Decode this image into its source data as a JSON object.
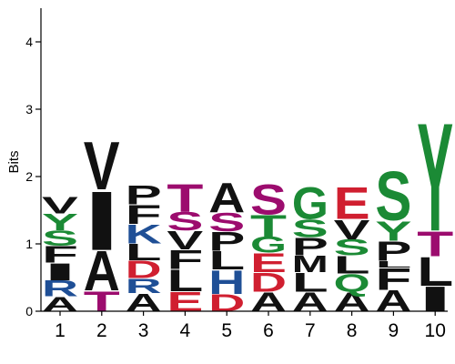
{
  "chart_data": {
    "type": "sequence-logo",
    "ylabel": "Bits",
    "xlabel": "",
    "ylim": [
      0,
      4.5
    ],
    "yticks": [
      0,
      1,
      2,
      3,
      4
    ],
    "colors": {
      "hydrophobic": "#111111",
      "polar": "#1b8a35",
      "basic": "#1f4f96",
      "acidic": "#d01f30",
      "neutral": "#9c0c6e"
    },
    "positions": [
      {
        "label": "1",
        "letters": [
          {
            "char": "A",
            "bits": 0.22,
            "color": "#111111"
          },
          {
            "char": "R",
            "bits": 0.24,
            "color": "#1f4f96"
          },
          {
            "char": "I",
            "bits": 0.26,
            "color": "#111111"
          },
          {
            "char": "F",
            "bits": 0.25,
            "color": "#111111"
          },
          {
            "char": "S",
            "bits": 0.23,
            "color": "#1b8a35"
          },
          {
            "char": "Y",
            "bits": 0.25,
            "color": "#1b8a35"
          },
          {
            "char": "V",
            "bits": 0.25,
            "color": "#111111"
          }
        ]
      },
      {
        "label": "2",
        "letters": [
          {
            "char": "T",
            "bits": 0.31,
            "color": "#9c0c6e"
          },
          {
            "char": "A",
            "bits": 0.6,
            "color": "#111111"
          },
          {
            "char": "I",
            "bits": 0.9,
            "color": "#111111"
          },
          {
            "char": "V",
            "bits": 0.73,
            "color": "#111111"
          }
        ]
      },
      {
        "label": "3",
        "letters": [
          {
            "char": "A",
            "bits": 0.27,
            "color": "#111111"
          },
          {
            "char": "R",
            "bits": 0.22,
            "color": "#1f4f96"
          },
          {
            "char": "D",
            "bits": 0.27,
            "color": "#d01f30"
          },
          {
            "char": "L",
            "bits": 0.25,
            "color": "#111111"
          },
          {
            "char": "K",
            "bits": 0.29,
            "color": "#1f4f96"
          },
          {
            "char": "F",
            "bits": 0.29,
            "color": "#111111"
          },
          {
            "char": "P",
            "bits": 0.29,
            "color": "#111111"
          }
        ]
      },
      {
        "label": "4",
        "letters": [
          {
            "char": "E",
            "bits": 0.3,
            "color": "#d01f30"
          },
          {
            "char": "L",
            "bits": 0.33,
            "color": "#111111"
          },
          {
            "char": "F",
            "bits": 0.29,
            "color": "#111111"
          },
          {
            "char": "V",
            "bits": 0.28,
            "color": "#111111"
          },
          {
            "char": "S",
            "bits": 0.28,
            "color": "#9c0c6e"
          },
          {
            "char": "T",
            "bits": 0.42,
            "color": "#9c0c6e"
          }
        ]
      },
      {
        "label": "5",
        "letters": [
          {
            "char": "D",
            "bits": 0.26,
            "color": "#d01f30"
          },
          {
            "char": "H",
            "bits": 0.36,
            "color": "#1f4f96"
          },
          {
            "char": "L",
            "bits": 0.28,
            "color": "#111111"
          },
          {
            "char": "P",
            "bits": 0.29,
            "color": "#111111"
          },
          {
            "char": "S",
            "bits": 0.28,
            "color": "#9c0c6e"
          },
          {
            "char": "A",
            "bits": 0.45,
            "color": "#111111"
          }
        ]
      },
      {
        "label": "6",
        "letters": [
          {
            "char": "A",
            "bits": 0.29,
            "color": "#111111"
          },
          {
            "char": "D",
            "bits": 0.29,
            "color": "#d01f30"
          },
          {
            "char": "E",
            "bits": 0.29,
            "color": "#d01f30"
          },
          {
            "char": "G",
            "bits": 0.24,
            "color": "#1b8a35"
          },
          {
            "char": "T",
            "bits": 0.33,
            "color": "#1b8a35"
          },
          {
            "char": "S",
            "bits": 0.46,
            "color": "#9c0c6e"
          }
        ]
      },
      {
        "label": "7",
        "letters": [
          {
            "char": "A",
            "bits": 0.29,
            "color": "#111111"
          },
          {
            "char": "L",
            "bits": 0.29,
            "color": "#111111"
          },
          {
            "char": "M",
            "bits": 0.25,
            "color": "#111111"
          },
          {
            "char": "P",
            "bits": 0.27,
            "color": "#111111"
          },
          {
            "char": "S",
            "bits": 0.27,
            "color": "#1b8a35"
          },
          {
            "char": "G",
            "bits": 0.49,
            "color": "#1b8a35"
          }
        ]
      },
      {
        "label": "8",
        "letters": [
          {
            "char": "A",
            "bits": 0.29,
            "color": "#111111"
          },
          {
            "char": "Q",
            "bits": 0.27,
            "color": "#1b8a35"
          },
          {
            "char": "L",
            "bits": 0.27,
            "color": "#111111"
          },
          {
            "char": "S",
            "bits": 0.24,
            "color": "#1b8a35"
          },
          {
            "char": "V",
            "bits": 0.3,
            "color": "#111111"
          },
          {
            "char": "E",
            "bits": 0.49,
            "color": "#d01f30"
          }
        ]
      },
      {
        "label": "9",
        "letters": [
          {
            "char": "A",
            "bits": 0.32,
            "color": "#111111"
          },
          {
            "char": "F",
            "bits": 0.33,
            "color": "#111111"
          },
          {
            "char": "L",
            "bits": 0.1,
            "color": "#111111"
          },
          {
            "char": "P",
            "bits": 0.3,
            "color": "#111111"
          },
          {
            "char": "Y",
            "bits": 0.3,
            "color": "#1b8a35"
          },
          {
            "char": "S",
            "bits": 0.75,
            "color": "#1b8a35"
          }
        ]
      },
      {
        "label": "10",
        "letters": [
          {
            "char": "I",
            "bits": 0.38,
            "color": "#111111"
          },
          {
            "char": "L",
            "bits": 0.44,
            "color": "#111111"
          },
          {
            "char": "T",
            "bits": 0.38,
            "color": "#9c0c6e"
          },
          {
            "char": "Y",
            "bits": 1.65,
            "color": "#1b8a35"
          }
        ]
      }
    ]
  }
}
